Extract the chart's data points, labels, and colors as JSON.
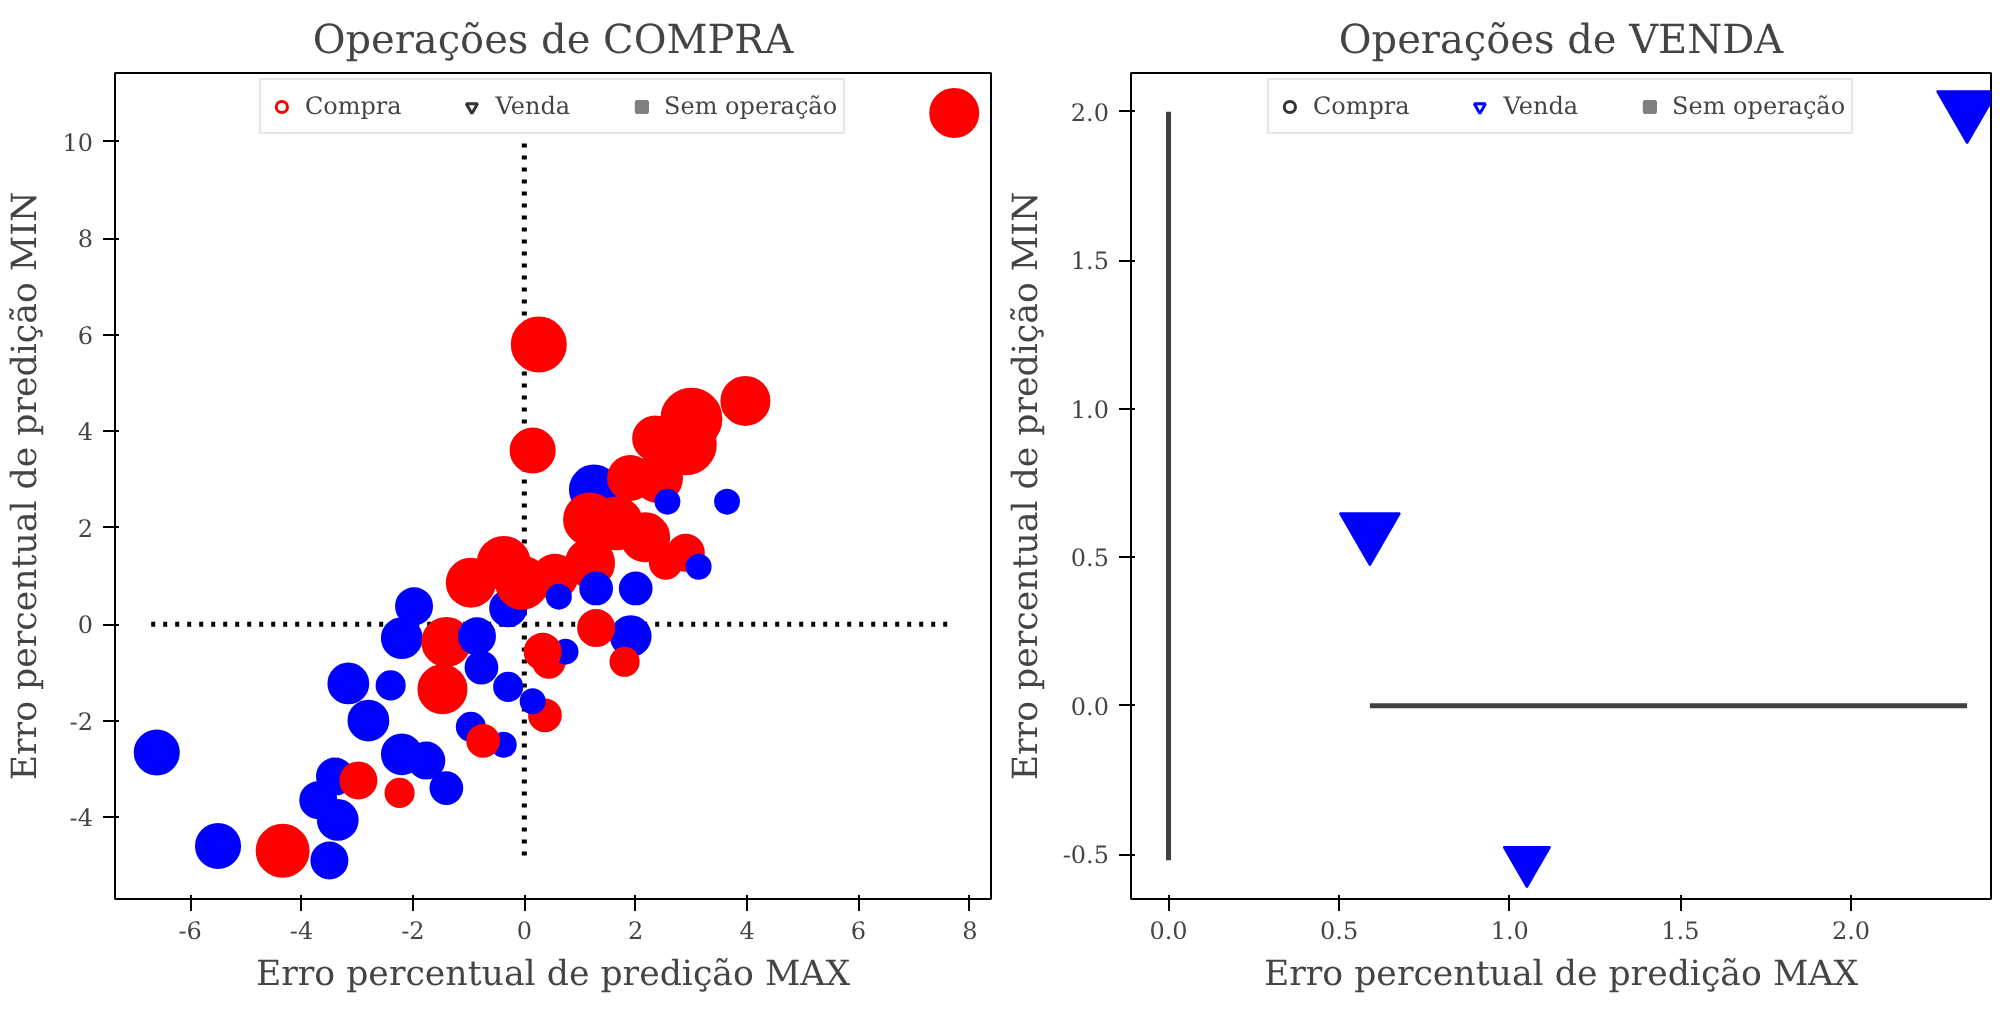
{
  "chart_data": [
    {
      "type": "bubble",
      "title": "Operações de COMPRA",
      "xlabel": "Erro percentual de predição MAX",
      "ylabel": "Erro percentual de predição MIN",
      "xlim": [
        -7.35,
        8.38
      ],
      "ylim": [
        -5.7,
        11.43
      ],
      "xticks": [
        -6,
        -4,
        -2,
        0,
        2,
        4,
        6,
        8
      ],
      "yticks": [
        -4,
        -2,
        0,
        2,
        4,
        6,
        8,
        10
      ],
      "grid": false,
      "legend": "top",
      "series": [
        {
          "type": "line",
          "x": [
            -6.7,
            7.6
          ],
          "values": [
            0,
            0
          ],
          "color": "#000000",
          "line_style": "dotted"
        },
        {
          "type": "line",
          "x": [
            0,
            0
          ],
          "values": [
            -4.8,
            10.0
          ],
          "color": "#000000",
          "line_style": "dotted"
        },
        {
          "name": "Compra",
          "marker": "circle",
          "color": "#ff0000",
          "x": [
            0.26,
            0.15,
            -6.6,
            -5.5,
            -4.34,
            -3.5,
            -3.35,
            -3.7,
            -3.4,
            -2.98,
            -2.24,
            -1.4,
            -3.16,
            -2.8,
            -2.4,
            -2.2,
            -1.76,
            -1.47,
            -2.2,
            -1.98,
            -1.4,
            -0.96,
            -0.37,
            -0.29,
            -0.85,
            -0.77,
            -0.96,
            -0.37,
            -0.74,
            0.37,
            0.15,
            -0.29,
            0.44,
            -0.04,
            3.97,
            3.0,
            2.9,
            2.35,
            1.25,
            1.9,
            2.4,
            2.57,
            3.64,
            1.18,
            1.65,
            2.9,
            2.17,
            3.13,
            2.54,
            1.18,
            1.29,
            2.0,
            0.55,
            0.62,
            1.91,
            1.29,
            1.8,
            0.74,
            0.33,
            7.72
          ],
          "values": [
            5.8,
            3.6,
            -2.66,
            -4.6,
            -4.7,
            -4.9,
            -4.06,
            -3.65,
            -3.16,
            -3.24,
            -3.5,
            -3.4,
            -1.23,
            -2.0,
            -1.27,
            -2.7,
            -2.83,
            -1.35,
            -0.29,
            0.37,
            -0.37,
            0.86,
            1.27,
            0.33,
            -0.25,
            -0.9,
            -2.13,
            -2.5,
            -2.42,
            -1.89,
            -1.6,
            -1.3,
            -0.78,
            0.86,
            4.63,
            4.26,
            3.73,
            3.85,
            2.79,
            3.03,
            3.03,
            2.54,
            2.54,
            2.17,
            2.09,
            1.48,
            1.8,
            1.19,
            1.27,
            1.27,
            0.74,
            0.74,
            0.98,
            0.57,
            -0.25,
            -0.08,
            -0.78,
            -0.57,
            -0.57,
            10.6
          ],
          "sizes": [
            0.81,
            0.54,
            0.54,
            0.54,
            0.75,
            0.36,
            0.44,
            0.36,
            0.36,
            0.36,
            0.22,
            0.28,
            0.44,
            0.44,
            0.22,
            0.44,
            0.36,
            0.64,
            0.44,
            0.36,
            0.64,
            0.64,
            0.75,
            0.36,
            0.36,
            0.28,
            0.22,
            0.16,
            0.28,
            0.28,
            0.16,
            0.22,
            0.28,
            0.75,
            0.64,
            1,
            1,
            0.54,
            0.64,
            0.54,
            0.64,
            0.16,
            0.16,
            0.75,
            0.75,
            0.36,
            0.64,
            0.16,
            0.28,
            0.64,
            0.28,
            0.28,
            0.54,
            0.16,
            0.44,
            0.36,
            0.22,
            0.16,
            0.36,
            0.64
          ],
          "colors": [
            "#ff0000",
            "#ff0000",
            "#0000ff",
            "#0000ff",
            "#ff0000",
            "#0000ff",
            "#0000ff",
            "#0000ff",
            "#0000ff",
            "#ff0000",
            "#ff0000",
            "#0000ff",
            "#0000ff",
            "#0000ff",
            "#0000ff",
            "#0000ff",
            "#0000ff",
            "#ff0000",
            "#0000ff",
            "#0000ff",
            "#ff0000",
            "#ff0000",
            "#ff0000",
            "#0000ff",
            "#0000ff",
            "#0000ff",
            "#0000ff",
            "#0000ff",
            "#ff0000",
            "#ff0000",
            "#0000ff",
            "#0000ff",
            "#ff0000",
            "#ff0000",
            "#ff0000",
            "#ff0000",
            "#ff0000",
            "#ff0000",
            "#0000ff",
            "#ff0000",
            "#ff0000",
            "#0000ff",
            "#0000ff",
            "#ff0000",
            "#ff0000",
            "#ff0000",
            "#ff0000",
            "#0000ff",
            "#ff0000",
            "#ff0000",
            "#0000ff",
            "#0000ff",
            "#ff0000",
            "#0000ff",
            "#0000ff",
            "#ff0000",
            "#ff0000",
            "#0000ff",
            "#ff0000",
            "#ff0000"
          ]
        },
        {
          "name": "Venda",
          "marker": "triangle",
          "color": "#333333"
        },
        {
          "name": "Sem operação",
          "marker": "square",
          "color": "#808080"
        }
      ]
    },
    {
      "type": "bubble",
      "title": "Operações de VENDA",
      "xlabel": "Erro percentual de predição MAX",
      "ylabel": "Erro percentual de predição MIN",
      "xlim": [
        -0.11,
        2.41
      ],
      "ylim": [
        -0.65,
        2.13
      ],
      "xticks": [
        {
          "value": 0,
          "label": "0.0"
        },
        0.5,
        {
          "value": 1,
          "label": "1.0"
        },
        1.5,
        {
          "value": 2,
          "label": "2.0"
        }
      ],
      "yticks": [
        -0.5,
        {
          "value": 0,
          "label": "0.0"
        },
        0.5,
        {
          "value": 1,
          "label": "1.0"
        },
        1.5,
        {
          "value": 2,
          "label": "2.0"
        }
      ],
      "grid": false,
      "legend": "top",
      "series": [
        {
          "type": "line",
          "x": [
            0,
            0
          ],
          "values": [
            -0.52,
            2.0
          ],
          "color": "#404040",
          "line_style": "solid"
        },
        {
          "type": "line",
          "x": [
            0.59,
            2.34
          ],
          "values": [
            0,
            0
          ],
          "color": "#404040",
          "line_style": "solid"
        },
        {
          "name": "Compra",
          "marker": "circle",
          "color": "#333333"
        },
        {
          "name": "Venda",
          "marker": "triangle",
          "color": "#0000ff",
          "x": [
            0.59,
            1.05,
            2.34
          ],
          "values": [
            0.59,
            -0.52,
            2.01
          ],
          "sizes": [
            1,
            0.6,
            1
          ],
          "colors": [
            "#0000ff",
            "#0000ff",
            "#0000ff"
          ]
        },
        {
          "name": "Sem operação",
          "marker": "square",
          "color": "#808080"
        }
      ]
    }
  ]
}
